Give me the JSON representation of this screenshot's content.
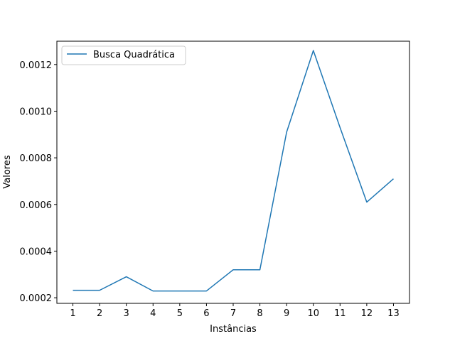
{
  "chart_data": {
    "type": "line",
    "title": "",
    "xlabel": "Instâncias",
    "ylabel": "Valores",
    "x": [
      1,
      2,
      3,
      4,
      5,
      6,
      7,
      8,
      9,
      10,
      11,
      12,
      13
    ],
    "x_tick_labels": [
      "1",
      "2",
      "3",
      "4",
      "5",
      "6",
      "7",
      "8",
      "9",
      "10",
      "11",
      "12",
      "13"
    ],
    "y_ticks": [
      0.0002,
      0.0004,
      0.0006,
      0.0008,
      0.001,
      0.0012
    ],
    "y_tick_labels": [
      "0.0002",
      "0.0004",
      "0.0006",
      "0.0008",
      "0.0010",
      "0.0012"
    ],
    "xlim": [
      0.4,
      13.6
    ],
    "ylim": [
      0.000176,
      0.0013
    ],
    "grid": false,
    "legend_position": "top-left",
    "series": [
      {
        "name": "Busca Quadrática",
        "color": "#1f77b4",
        "values": [
          0.000232,
          0.000232,
          0.00029,
          0.000229,
          0.000229,
          0.000229,
          0.00032,
          0.00032,
          0.00091,
          0.00126,
          0.00093,
          0.00061,
          0.00071
        ]
      }
    ]
  }
}
